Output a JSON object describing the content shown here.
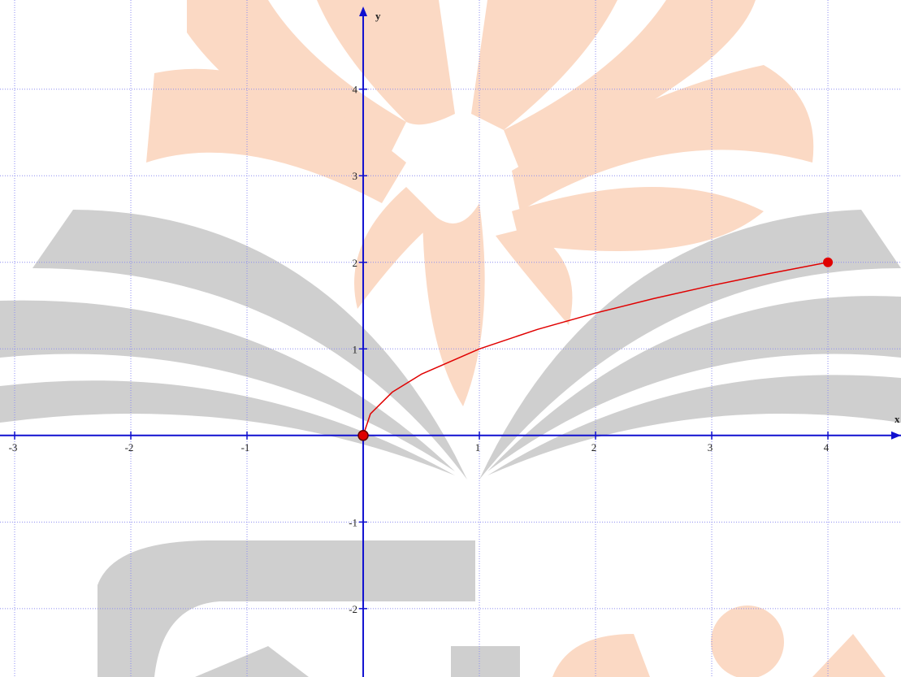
{
  "chart_data": {
    "type": "line",
    "x": [
      0,
      0.0625,
      0.25,
      0.5,
      1,
      1.5,
      2,
      2.5,
      3,
      3.5,
      4
    ],
    "series": [
      {
        "color": "#e00000",
        "values": [
          0,
          0.25,
          0.5,
          0.707,
          1,
          1.225,
          1.414,
          1.581,
          1.732,
          1.871,
          2
        ]
      }
    ],
    "xlabel": "x",
    "ylabel": "y",
    "xlim": [
      -3.126,
      4.629
    ],
    "ylim": [
      -2.79,
      5.03
    ],
    "xticks": [
      -3,
      -2,
      -1,
      1,
      2,
      3,
      4
    ],
    "yticks": [
      -2,
      -1,
      1,
      2,
      3,
      4
    ],
    "grid": true
  }
}
